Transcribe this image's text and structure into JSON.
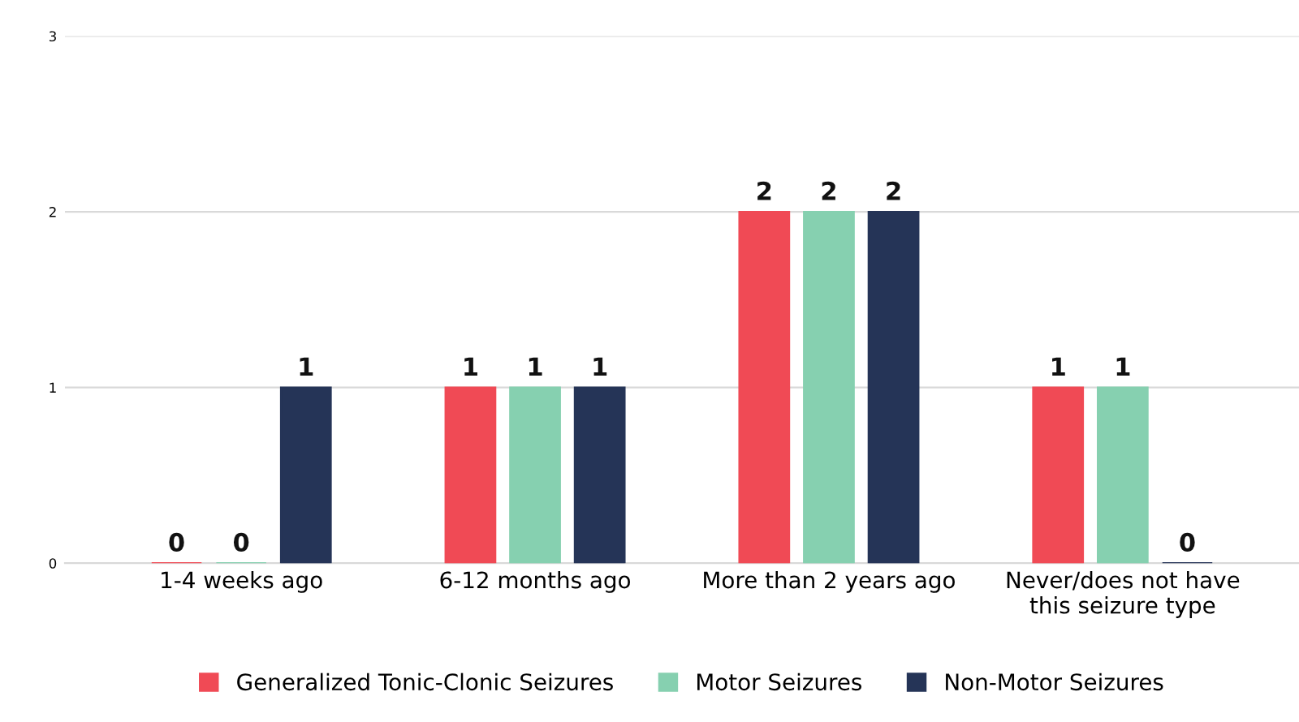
{
  "chart_data": {
    "type": "bar",
    "categories": [
      "1-4 weeks ago",
      "6-12 months ago",
      "More than 2 years ago",
      "Never/does not have this seizure type"
    ],
    "series": [
      {
        "name": "Generalized Tonic-Clonic Seizures",
        "color": "#f04a55",
        "values": [
          0,
          1,
          2,
          1
        ]
      },
      {
        "name": "Motor Seizures",
        "color": "#86d0b0",
        "values": [
          0,
          1,
          2,
          1
        ]
      },
      {
        "name": "Non-Motor Seizures",
        "color": "#253457",
        "values": [
          1,
          1,
          2,
          0
        ]
      }
    ],
    "ylim": [
      0,
      3
    ],
    "yticks": [
      0,
      1,
      2,
      3
    ],
    "grid": "y",
    "legend": "bottom",
    "data_labels": true
  }
}
